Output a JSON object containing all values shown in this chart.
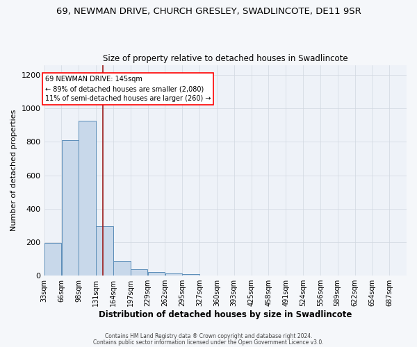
{
  "title": "69, NEWMAN DRIVE, CHURCH GRESLEY, SWADLINCOTE, DE11 9SR",
  "subtitle": "Size of property relative to detached houses in Swadlincote",
  "xlabel": "Distribution of detached houses by size in Swadlincote",
  "ylabel": "Number of detached properties",
  "footnote1": "Contains HM Land Registry data ® Crown copyright and database right 2024.",
  "footnote2": "Contains public sector information licensed under the Open Government Licence v3.0.",
  "annotation_title": "69 NEWMAN DRIVE: 145sqm",
  "annotation_line1": "← 89% of detached houses are smaller (2,080)",
  "annotation_line2": "11% of semi-detached houses are larger (260) →",
  "bar_color": "#c8d8ea",
  "bar_edge_color": "#5b8db8",
  "bg_color": "#eef2f8",
  "grid_color": "#d0d8e0",
  "red_line_x": 145,
  "bins": [
    33,
    66,
    99,
    132,
    165,
    198,
    231,
    264,
    297,
    330,
    363,
    396,
    429,
    462,
    495,
    528,
    561,
    594,
    627,
    660,
    693
  ],
  "bin_labels": [
    "33sqm",
    "66sqm",
    "98sqm",
    "131sqm",
    "164sqm",
    "197sqm",
    "229sqm",
    "262sqm",
    "295sqm",
    "327sqm",
    "360sqm",
    "393sqm",
    "425sqm",
    "458sqm",
    "491sqm",
    "524sqm",
    "556sqm",
    "589sqm",
    "622sqm",
    "654sqm",
    "687sqm"
  ],
  "counts": [
    195,
    810,
    925,
    295,
    90,
    40,
    20,
    15,
    10,
    0,
    0,
    0,
    0,
    0,
    0,
    0,
    0,
    0,
    0,
    0,
    0
  ],
  "ylim": [
    0,
    1260
  ],
  "yticks": [
    0,
    200,
    400,
    600,
    800,
    1000,
    1200
  ]
}
